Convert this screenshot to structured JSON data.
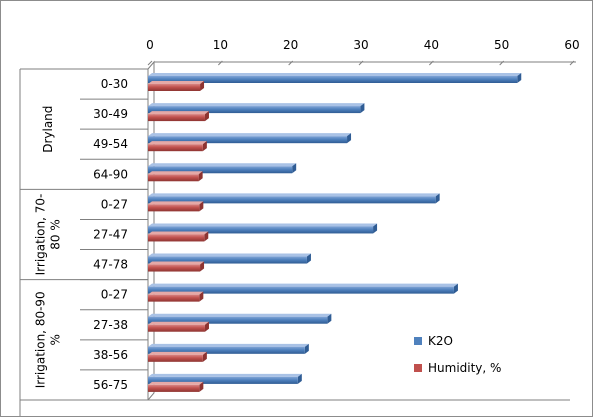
{
  "chart_data": {
    "type": "bar",
    "orientation": "horizontal",
    "title": "",
    "xlabel": "",
    "ylabel": "",
    "xlim": [
      0,
      60
    ],
    "ticks": [
      "0",
      "10",
      "20",
      "30",
      "40",
      "50",
      "60"
    ],
    "tick_position": "top",
    "grid": false,
    "legend_position": "right",
    "groups": [
      {
        "label": "Dryland",
        "categories": [
          "0-30",
          "30-49",
          "49-54",
          "64-90"
        ]
      },
      {
        "label": "Irrigation, 70-80 %",
        "label_lines": [
          "Irrigation, 70-",
          "80 %"
        ],
        "categories": [
          "0-27",
          "27-47",
          "47-78"
        ]
      },
      {
        "label": "Irrigation, 80-90 %",
        "label_lines": [
          "Irrigation, 80-90",
          "%"
        ],
        "categories": [
          "0-27",
          "27-38",
          "38-56",
          "56-75"
        ]
      }
    ],
    "categories": [
      "0-30",
      "30-49",
      "49-54",
      "64-90",
      "0-27",
      "27-47",
      "47-78",
      "0-27",
      "27-38",
      "38-56",
      "56-75"
    ],
    "series": [
      {
        "name": "K2O",
        "color": "#4F81BD",
        "values": [
          52.5,
          30.2,
          28.3,
          20.5,
          40.9,
          32.0,
          22.6,
          43.5,
          25.5,
          22.3,
          21.3
        ]
      },
      {
        "name": "Humidity, %",
        "color": "#C0504D",
        "values": [
          7.4,
          8.1,
          7.8,
          7.2,
          7.3,
          8.0,
          7.4,
          7.3,
          8.1,
          7.8,
          7.3
        ]
      }
    ]
  }
}
